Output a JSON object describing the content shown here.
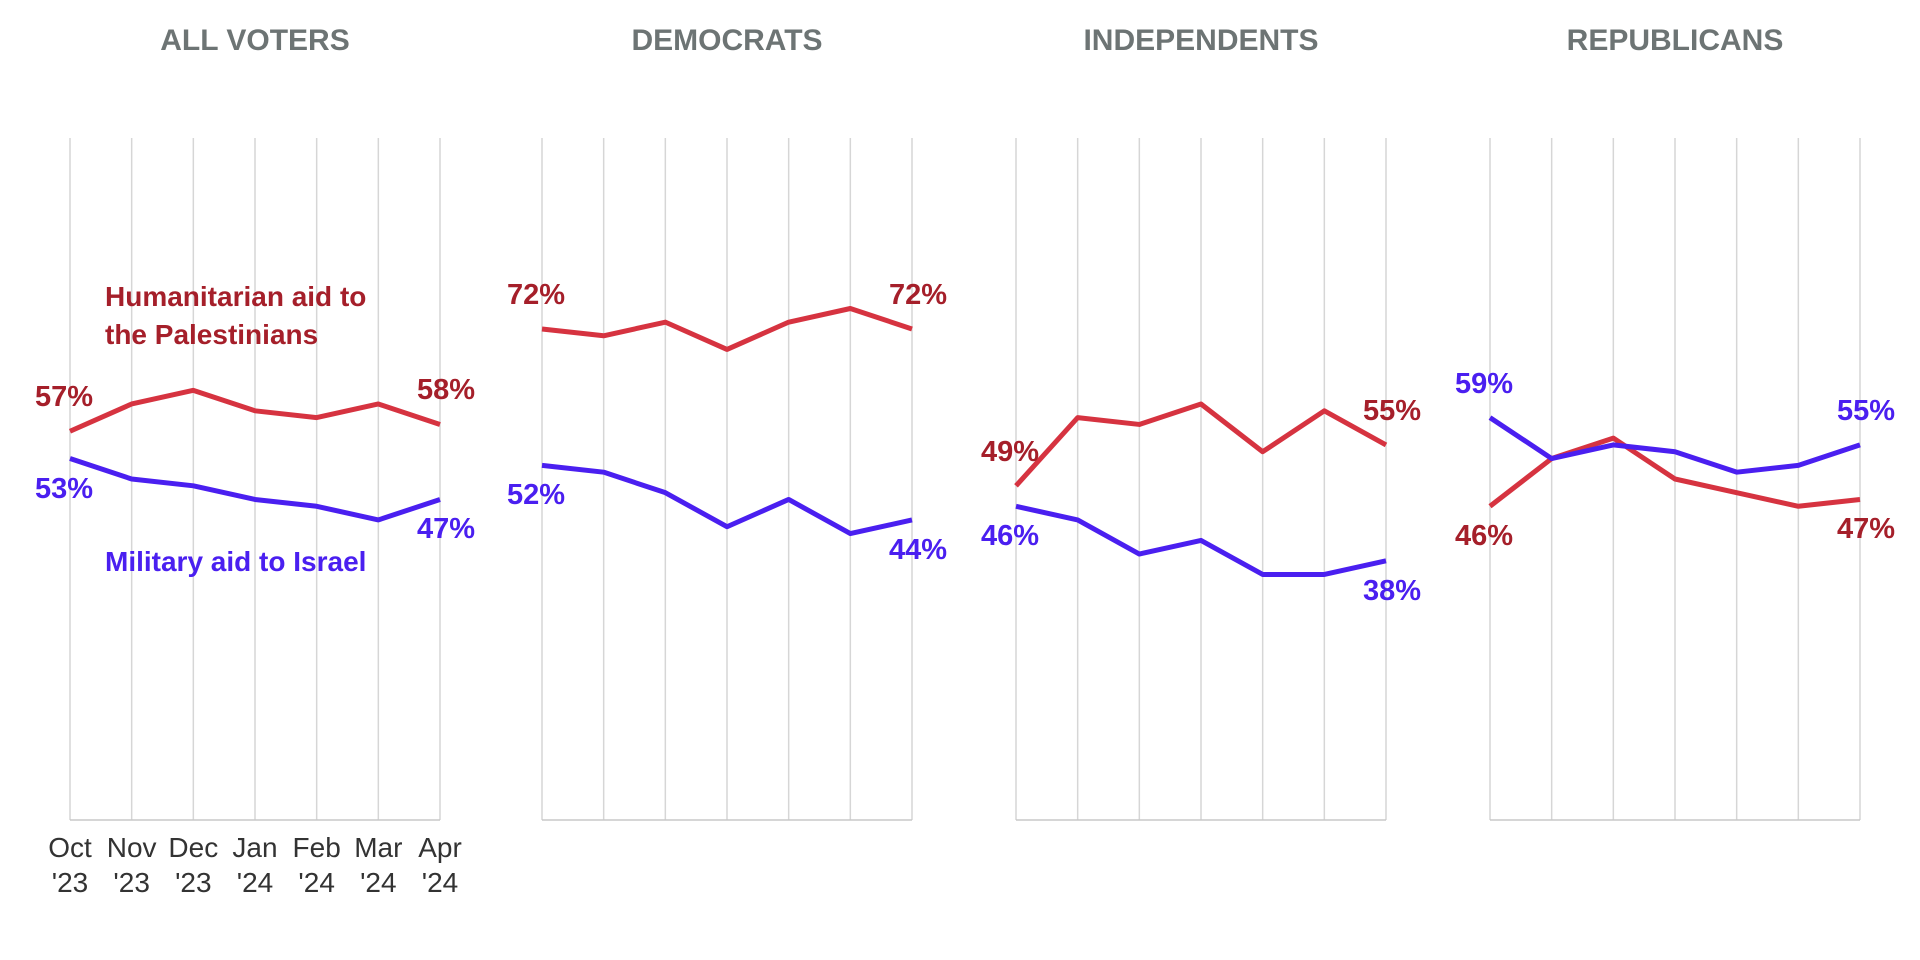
{
  "chart_data": [
    {
      "type": "line",
      "title": "ALL VOTERS",
      "categories": [
        "Oct '23",
        "Nov '23",
        "Dec '23",
        "Jan '24",
        "Feb '24",
        "Mar '24",
        "Apr '24"
      ],
      "ylim": [
        0,
        100
      ],
      "series": [
        {
          "name": "Humanitarian aid to the Palestinians",
          "color": "#d63340",
          "values": [
            57,
            61,
            63,
            60,
            59,
            61,
            58
          ],
          "value_labels": [
            "57%",
            null,
            null,
            null,
            null,
            null,
            "58%"
          ]
        },
        {
          "name": "Military aid to Israel",
          "color": "#4a1ff0",
          "values": [
            53,
            50,
            49,
            47,
            46,
            44,
            47
          ],
          "value_labels": [
            "53%",
            null,
            null,
            null,
            null,
            null,
            "47%"
          ]
        }
      ]
    },
    {
      "type": "line",
      "title": "DEMOCRATS",
      "ylim": [
        0,
        100
      ],
      "series": [
        {
          "color": "#d63340",
          "values": [
            72,
            71,
            73,
            69,
            73,
            75,
            72
          ],
          "value_labels": [
            "72%",
            null,
            null,
            null,
            null,
            null,
            "72%"
          ]
        },
        {
          "color": "#4a1ff0",
          "values": [
            52,
            51,
            48,
            43,
            47,
            42,
            44
          ],
          "value_labels": [
            "52%",
            null,
            null,
            null,
            null,
            null,
            "44%"
          ]
        }
      ]
    },
    {
      "type": "line",
      "title": "INDEPENDENTS",
      "ylim": [
        0,
        100
      ],
      "series": [
        {
          "color": "#d63340",
          "values": [
            49,
            59,
            58,
            61,
            54,
            60,
            55
          ],
          "value_labels": [
            "49%",
            null,
            null,
            null,
            null,
            null,
            "55%"
          ]
        },
        {
          "color": "#4a1ff0",
          "values": [
            46,
            44,
            39,
            41,
            36,
            36,
            38
          ],
          "value_labels": [
            "46%",
            null,
            null,
            null,
            null,
            null,
            "38%"
          ]
        }
      ]
    },
    {
      "type": "line",
      "title": "REPUBLICANS",
      "ylim": [
        0,
        100
      ],
      "series": [
        {
          "color": "#d63340",
          "values": [
            46,
            53,
            56,
            50,
            48,
            46,
            47
          ],
          "value_labels": [
            "46%",
            null,
            null,
            null,
            null,
            null,
            "47%"
          ]
        },
        {
          "color": "#4a1ff0",
          "values": [
            59,
            53,
            55,
            54,
            51,
            52,
            55
          ],
          "value_labels": [
            "59%",
            null,
            null,
            null,
            null,
            null,
            "55%"
          ]
        }
      ]
    }
  ]
}
